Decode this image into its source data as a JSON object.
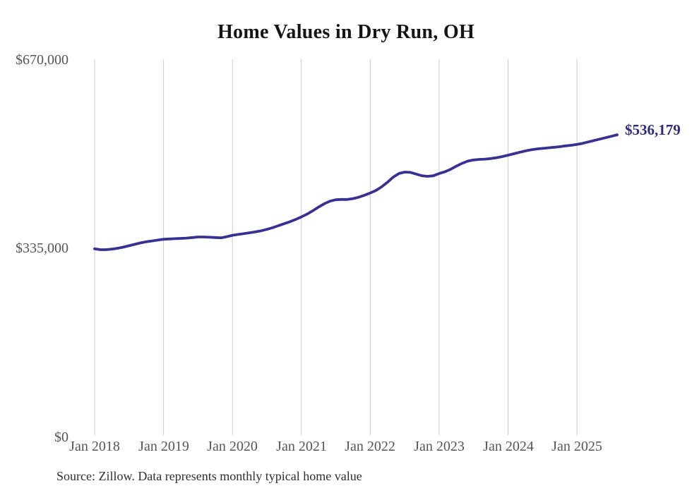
{
  "title": "Home Values in Dry Run, OH",
  "source_note": "Source: Zillow. Data represents monthly typical home value",
  "colors": {
    "line": "#363192",
    "end_label": "#2f2c80",
    "grid": "#cccccc",
    "axis_text": "#555555",
    "title_text": "#141414",
    "source_text": "#2f2f2f",
    "background": "#ffffff"
  },
  "chart_data": {
    "type": "line",
    "title": "Home Values in Dry Run, OH",
    "xlabel": "",
    "ylabel": "",
    "ylim": [
      0,
      670000
    ],
    "grid": "vertical-yearly-gridlines",
    "legend": "none",
    "y_tick_labels": [
      "$670,000",
      "$335,000",
      "$0"
    ],
    "y_tick_values": [
      670000,
      335000,
      0
    ],
    "x_tick_labels": [
      "Jan 2018",
      "Jan 2019",
      "Jan 2020",
      "Jan 2021",
      "Jan 2022",
      "Jan 2023",
      "Jan 2024",
      "Jan 2025"
    ],
    "last_point": {
      "month": "2025-08",
      "value": 536179,
      "label": "$536,179"
    },
    "series": [
      {
        "name": "Monthly typical home value",
        "months": [
          "2018-01",
          "2018-02",
          "2018-03",
          "2018-04",
          "2018-05",
          "2018-06",
          "2018-07",
          "2018-08",
          "2018-09",
          "2018-10",
          "2018-11",
          "2018-12",
          "2019-01",
          "2019-02",
          "2019-03",
          "2019-04",
          "2019-05",
          "2019-06",
          "2019-07",
          "2019-08",
          "2019-09",
          "2019-10",
          "2019-11",
          "2019-12",
          "2020-01",
          "2020-02",
          "2020-03",
          "2020-04",
          "2020-05",
          "2020-06",
          "2020-07",
          "2020-08",
          "2020-09",
          "2020-10",
          "2020-11",
          "2020-12",
          "2021-01",
          "2021-02",
          "2021-03",
          "2021-04",
          "2021-05",
          "2021-06",
          "2021-07",
          "2021-08",
          "2021-09",
          "2021-10",
          "2021-11",
          "2021-12",
          "2022-01",
          "2022-02",
          "2022-03",
          "2022-04",
          "2022-05",
          "2022-06",
          "2022-07",
          "2022-08",
          "2022-09",
          "2022-10",
          "2022-11",
          "2022-12",
          "2023-01",
          "2023-02",
          "2023-03",
          "2023-04",
          "2023-05",
          "2023-06",
          "2023-07",
          "2023-08",
          "2023-09",
          "2023-10",
          "2023-11",
          "2023-12",
          "2024-01",
          "2024-02",
          "2024-03",
          "2024-04",
          "2024-05",
          "2024-06",
          "2024-07",
          "2024-08",
          "2024-09",
          "2024-10",
          "2024-11",
          "2024-12",
          "2025-01",
          "2025-02",
          "2025-03",
          "2025-04",
          "2025-05",
          "2025-06",
          "2025-07",
          "2025-08"
        ],
        "values": [
          334000,
          332500,
          332500,
          333500,
          335000,
          337000,
          339500,
          342000,
          344500,
          346500,
          348000,
          349500,
          351000,
          351500,
          352000,
          352500,
          353000,
          354000,
          355000,
          355000,
          354500,
          354000,
          353500,
          355500,
          358000,
          359500,
          361000,
          362500,
          364000,
          366000,
          368500,
          371500,
          375000,
          378500,
          382000,
          386000,
          390500,
          395500,
          401500,
          408000,
          414000,
          418500,
          421000,
          421500,
          421500,
          423000,
          425500,
          429000,
          433000,
          437500,
          444000,
          452000,
          461000,
          467500,
          470000,
          469500,
          466500,
          463500,
          462500,
          463500,
          467500,
          470500,
          475000,
          480500,
          485500,
          489500,
          491500,
          492500,
          493000,
          494000,
          495500,
          497500,
          500000,
          502500,
          505000,
          507500,
          509500,
          511000,
          512000,
          513000,
          514000,
          515000,
          516500,
          517500,
          519000,
          521000,
          523500,
          526000,
          528500,
          531000,
          533500,
          536179
        ]
      }
    ]
  }
}
